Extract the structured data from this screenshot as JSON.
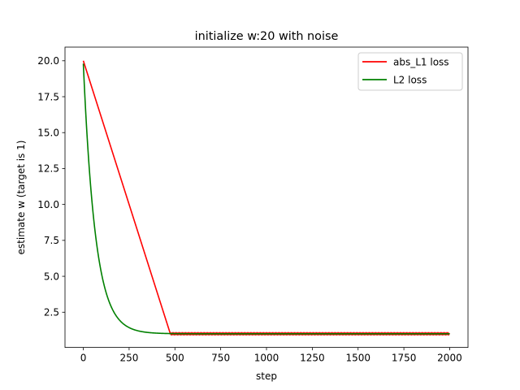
{
  "chart_data": {
    "type": "line",
    "title": "initialize w:20 with noise",
    "xlabel": "step",
    "ylabel": "estimate w (target is 1)",
    "xlim": [
      -100,
      2100
    ],
    "ylim": [
      0.05,
      20.95
    ],
    "xticks": [
      0,
      250,
      500,
      750,
      1000,
      1250,
      1500,
      1750,
      2000
    ],
    "xtick_labels": [
      "0",
      "250",
      "500",
      "750",
      "1000",
      "1250",
      "1500",
      "1750",
      "2000"
    ],
    "yticks": [
      2.5,
      5.0,
      7.5,
      10.0,
      12.5,
      15.0,
      17.5,
      20.0
    ],
    "ytick_labels": [
      "2.5",
      "5.0",
      "7.5",
      "10.0",
      "12.5",
      "15.0",
      "17.5",
      "20.0"
    ],
    "grid": false,
    "legend_position": "top-right",
    "series": [
      {
        "name": "abs_L1 loss",
        "color": "#ff0000",
        "points": [
          [
            0,
            20.0
          ],
          [
            475,
            1.0
          ],
          [
            2000,
            1.0
          ]
        ],
        "noise_amplitude": 0.04
      },
      {
        "name": "L2 loss",
        "color": "#008000",
        "start": 19.8,
        "target": 1.0,
        "decay_per_step": 0.985,
        "x_start": 0,
        "x_end": 2000
      }
    ]
  }
}
